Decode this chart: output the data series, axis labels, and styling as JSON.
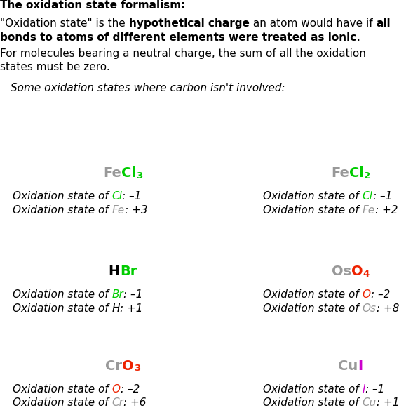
{
  "bg_color": "#ffffff",
  "compounds": [
    {
      "col": 0,
      "row": 0,
      "formula": [
        {
          "text": "Fe",
          "color": "#999999",
          "sub": false
        },
        {
          "text": "Cl",
          "color": "#00cc00",
          "sub": false
        },
        {
          "text": "3",
          "color": "#00cc00",
          "sub": true
        }
      ],
      "ox_lines": [
        [
          {
            "text": "Oxidation state of ",
            "color": "#000000"
          },
          {
            "text": "Cl",
            "color": "#00cc00"
          },
          {
            "text": ": –1",
            "color": "#000000"
          }
        ],
        [
          {
            "text": "Oxidation state of ",
            "color": "#000000"
          },
          {
            "text": "Fe",
            "color": "#999999"
          },
          {
            "text": ": +3",
            "color": "#000000"
          }
        ]
      ]
    },
    {
      "col": 1,
      "row": 0,
      "formula": [
        {
          "text": "Fe",
          "color": "#999999",
          "sub": false
        },
        {
          "text": "Cl",
          "color": "#00cc00",
          "sub": false
        },
        {
          "text": "2",
          "color": "#00cc00",
          "sub": true
        }
      ],
      "ox_lines": [
        [
          {
            "text": "Oxidation state of ",
            "color": "#000000"
          },
          {
            "text": "Cl",
            "color": "#00cc00"
          },
          {
            "text": ": –1",
            "color": "#000000"
          }
        ],
        [
          {
            "text": "Oxidation state of ",
            "color": "#000000"
          },
          {
            "text": "Fe",
            "color": "#999999"
          },
          {
            "text": ": +2",
            "color": "#000000"
          }
        ]
      ]
    },
    {
      "col": 0,
      "row": 1,
      "formula": [
        {
          "text": "H",
          "color": "#000000",
          "sub": false
        },
        {
          "text": "Br",
          "color": "#00cc00",
          "sub": false
        }
      ],
      "ox_lines": [
        [
          {
            "text": "Oxidation state of ",
            "color": "#000000"
          },
          {
            "text": "Br",
            "color": "#00cc00"
          },
          {
            "text": ": –1",
            "color": "#000000"
          }
        ],
        [
          {
            "text": "Oxidation state of ",
            "color": "#000000"
          },
          {
            "text": "H",
            "color": "#000000"
          },
          {
            "text": ": +1",
            "color": "#000000"
          }
        ]
      ]
    },
    {
      "col": 1,
      "row": 1,
      "formula": [
        {
          "text": "Os",
          "color": "#999999",
          "sub": false
        },
        {
          "text": "O",
          "color": "#ee2200",
          "sub": false
        },
        {
          "text": "4",
          "color": "#ee2200",
          "sub": true
        }
      ],
      "ox_lines": [
        [
          {
            "text": "Oxidation state of ",
            "color": "#000000"
          },
          {
            "text": "O",
            "color": "#ee2200"
          },
          {
            "text": ": –2",
            "color": "#000000"
          }
        ],
        [
          {
            "text": "Oxidation state of ",
            "color": "#000000"
          },
          {
            "text": "Os",
            "color": "#999999"
          },
          {
            "text": ": +8",
            "color": "#000000"
          }
        ]
      ]
    },
    {
      "col": 0,
      "row": 2,
      "formula": [
        {
          "text": "Cr",
          "color": "#999999",
          "sub": false
        },
        {
          "text": "O",
          "color": "#ee2200",
          "sub": false
        },
        {
          "text": "3",
          "color": "#ee2200",
          "sub": true
        }
      ],
      "ox_lines": [
        [
          {
            "text": "Oxidation state of ",
            "color": "#000000"
          },
          {
            "text": "O",
            "color": "#ee2200"
          },
          {
            "text": ": –2",
            "color": "#000000"
          }
        ],
        [
          {
            "text": "Oxidation state of ",
            "color": "#000000"
          },
          {
            "text": "Cr",
            "color": "#999999"
          },
          {
            "text": ": +6",
            "color": "#000000"
          }
        ]
      ]
    },
    {
      "col": 1,
      "row": 2,
      "formula": [
        {
          "text": "Cu",
          "color": "#999999",
          "sub": false
        },
        {
          "text": "I",
          "color": "#cc00cc",
          "sub": false
        }
      ],
      "ox_lines": [
        [
          {
            "text": "Oxidation state of ",
            "color": "#000000"
          },
          {
            "text": "I",
            "color": "#cc00cc"
          },
          {
            "text": ": –1",
            "color": "#000000"
          }
        ],
        [
          {
            "text": "Oxidation state of ",
            "color": "#000000"
          },
          {
            "text": "Cu",
            "color": "#999999"
          },
          {
            "text": ": +1",
            "color": "#000000"
          }
        ]
      ]
    }
  ]
}
